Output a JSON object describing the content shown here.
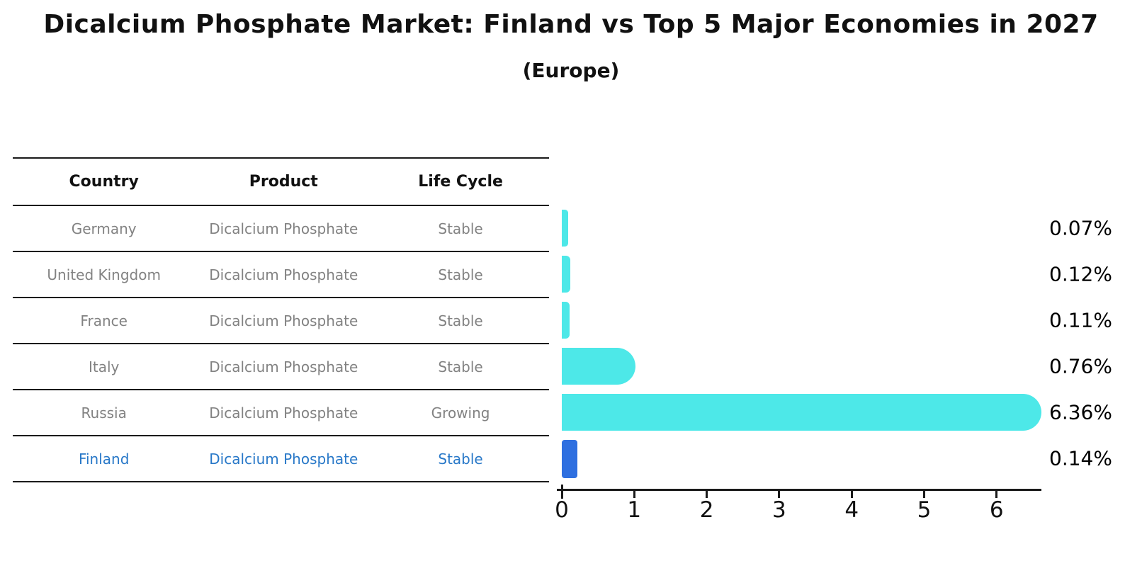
{
  "header": {
    "title": "Dicalcium Phosphate Market: Finland vs Top 5 Major Economies in 2027",
    "subtitle": "(Europe)"
  },
  "table": {
    "columns": [
      "Country",
      "Product",
      "Life Cycle"
    ],
    "rows": [
      {
        "country": "Germany",
        "product": "Dicalcium Phosphate",
        "life_cycle": "Stable"
      },
      {
        "country": "United Kingdom",
        "product": "Dicalcium Phosphate",
        "life_cycle": "Stable"
      },
      {
        "country": "France",
        "product": "Dicalcium Phosphate",
        "life_cycle": "Stable"
      },
      {
        "country": "Italy",
        "product": "Dicalcium Phosphate",
        "life_cycle": "Stable"
      },
      {
        "country": "Russia",
        "product": "Dicalcium Phosphate",
        "life_cycle": "Growing"
      },
      {
        "country": "Finland",
        "product": "Dicalcium Phosphate",
        "life_cycle": "Stable"
      }
    ],
    "highlight_row": "Finland"
  },
  "chart_data": {
    "type": "bar",
    "orientation": "horizontal",
    "title": "Dicalcium Phosphate Market: Finland vs Top 5 Major Economies in 2027",
    "subtitle": "(Europe)",
    "categories": [
      "Germany",
      "United Kingdom",
      "France",
      "Italy",
      "Russia",
      "Finland"
    ],
    "values": [
      0.07,
      0.12,
      0.11,
      0.76,
      6.36,
      0.14
    ],
    "value_labels": [
      "0.07%",
      "0.12%",
      "0.11%",
      "0.76%",
      "6.36%",
      "0.14%"
    ],
    "xlabel": "",
    "ylabel": "",
    "xticks": [
      0,
      1,
      2,
      3,
      4,
      5,
      6
    ],
    "xlim": [
      0,
      6.7
    ],
    "grid": false,
    "legend": false,
    "bar_color": "#4de8e8",
    "highlight_color": "#2e6fe0",
    "highlight_index": 5,
    "highlight_text_color": "#2878c8",
    "axis_color": "#1a1a1a",
    "row_text_color": "#828282"
  }
}
